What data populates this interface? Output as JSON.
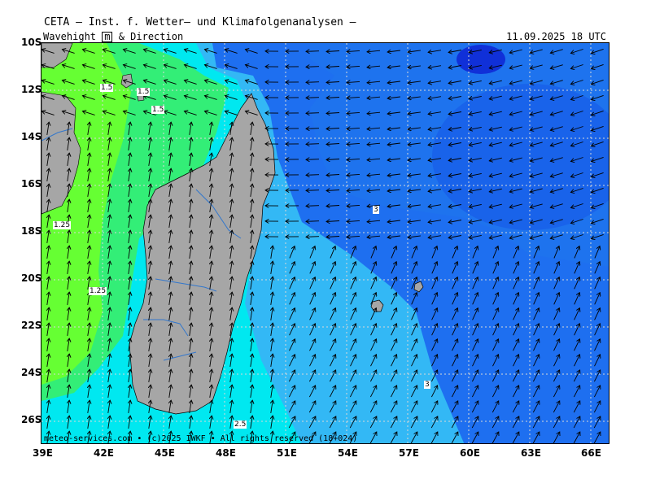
{
  "header": {
    "title": "CETA — Inst. f. Wetter— und Klimafolgenanalysen —",
    "param_prefix": "Wavehight ",
    "param_unit": "m",
    "param_suffix": " & Direction",
    "valid_time": "11.09.2025 18 UTC"
  },
  "footer": {
    "credit": "meteo-services.com • (c)2025 IWKF • All rights reserved (18+024)"
  },
  "axes": {
    "lat_labels": [
      "10S",
      "12S",
      "14S",
      "16S",
      "18S",
      "20S",
      "22S",
      "24S",
      "26S"
    ],
    "lon_labels": [
      "39E",
      "42E",
      "45E",
      "48E",
      "51E",
      "54E",
      "57E",
      "60E",
      "63E",
      "66E"
    ]
  },
  "contour_labels": [
    "1.5",
    "1.5",
    "1.5",
    "1.25",
    "1.25",
    "3",
    "3",
    "2.5"
  ],
  "colors": {
    "sea_lowest": "#66ff33",
    "sea_green": "#33ee77",
    "sea_cyan": "#00f0f0",
    "sea_lightblue": "#33b8f5",
    "sea_blue": "#1e73ee",
    "sea_deep": "#1030d8",
    "land": "#a6a6a6",
    "rivers": "#3377cc",
    "grid": "#d8d8d8",
    "arrows": "#000000"
  },
  "legend": {
    "direction_arrows": "wave direction arrows"
  }
}
